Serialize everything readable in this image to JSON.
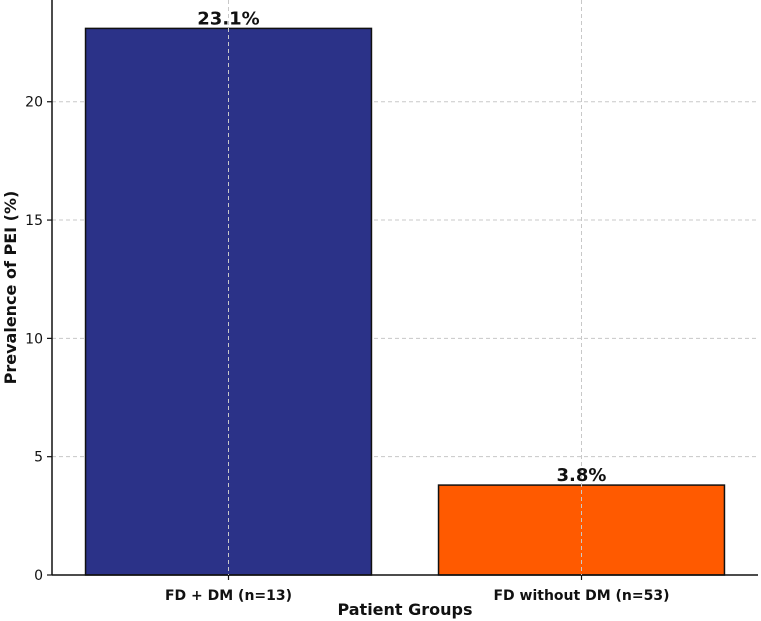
{
  "chart_data": {
    "type": "bar",
    "title": "",
    "xlabel": "Patient Groups",
    "ylabel": "Prevalence of PEI (%)",
    "categories": [
      "FD + DM (n=13)",
      "FD without DM (n=53)"
    ],
    "values": [
      23.1,
      3.8
    ],
    "data_labels": [
      "23.1%",
      "3.8%"
    ],
    "bar_colors": [
      "#2b3288",
      "#ff5a00"
    ],
    "ylim": [
      0,
      24.3
    ],
    "yticks": [
      0,
      5,
      10,
      15,
      20
    ],
    "grid": true,
    "legend": "none"
  }
}
